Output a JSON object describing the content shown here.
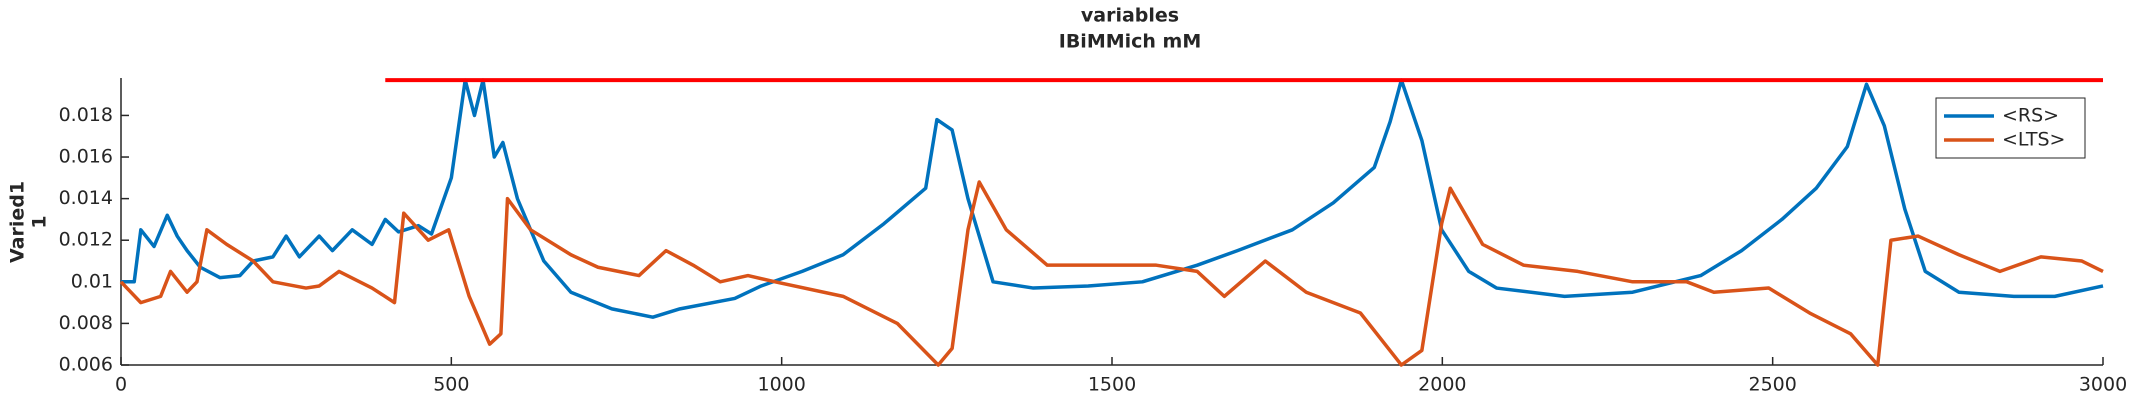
{
  "chart_data": {
    "type": "line",
    "title": "variables",
    "subtitle": "IBiMMich mM",
    "ylabel": [
      "Varied1",
      "1"
    ],
    "xlim": [
      0,
      3000
    ],
    "xticks": [
      0,
      500,
      1000,
      1500,
      2000,
      2500,
      3000
    ],
    "ylim": [
      0.006,
      0.0198
    ],
    "yticks": [
      0.006,
      0.008,
      0.01,
      0.012,
      0.014,
      0.016,
      0.018
    ],
    "legend": "upper right",
    "reference_line": {
      "x": [
        400,
        3000
      ],
      "y": 0.0197,
      "color": "#ff0000"
    },
    "series": [
      {
        "name": "<RS>",
        "color": "#0072bd",
        "x": [
          0,
          20,
          30,
          50,
          70,
          85,
          100,
          120,
          150,
          180,
          200,
          230,
          250,
          270,
          300,
          320,
          350,
          380,
          400,
          420,
          450,
          470,
          500,
          521,
          535,
          548,
          565,
          578,
          600,
          640,
          681,
          743,
          805,
          846,
          929,
          969,
          1031,
          1093,
          1155,
          1218,
          1235,
          1258,
          1282,
          1320,
          1381,
          1464,
          1546,
          1629,
          1690,
          1773,
          1835,
          1897,
          1921,
          1938,
          1969,
          1999,
          2040,
          2082,
          2185,
          2288,
          2391,
          2453,
          2514,
          2566,
          2613,
          2642,
          2669,
          2700,
          2731,
          2782,
          2865,
          2927,
          3000
        ],
        "values": [
          0.01,
          0.01,
          0.0125,
          0.0117,
          0.0132,
          0.0122,
          0.0115,
          0.0107,
          0.0102,
          0.0103,
          0.011,
          0.0112,
          0.0122,
          0.0112,
          0.0122,
          0.0115,
          0.0125,
          0.0118,
          0.013,
          0.0124,
          0.0127,
          0.0123,
          0.015,
          0.0197,
          0.018,
          0.0197,
          0.016,
          0.0167,
          0.014,
          0.011,
          0.0095,
          0.0087,
          0.0083,
          0.0087,
          0.0092,
          0.0098,
          0.0105,
          0.0113,
          0.0128,
          0.0145,
          0.0178,
          0.0173,
          0.014,
          0.01,
          0.0097,
          0.0098,
          0.01,
          0.0108,
          0.0115,
          0.0125,
          0.0138,
          0.0155,
          0.0177,
          0.0197,
          0.0168,
          0.0125,
          0.0105,
          0.0097,
          0.0093,
          0.0095,
          0.0103,
          0.0115,
          0.013,
          0.0145,
          0.0165,
          0.0195,
          0.0175,
          0.0135,
          0.0105,
          0.0095,
          0.0093,
          0.0093,
          0.0098
        ]
      },
      {
        "name": "<LTS>",
        "color": "#d95319",
        "x": [
          0,
          30,
          60,
          75,
          100,
          115,
          130,
          160,
          200,
          230,
          280,
          300,
          330,
          380,
          414,
          428,
          465,
          496,
          527,
          558,
          575,
          585,
          620,
          681,
          722,
          784,
          825,
          866,
          907,
          949,
          990,
          1093,
          1175,
          1237,
          1258,
          1282,
          1299,
          1340,
          1402,
          1484,
          1567,
          1629,
          1670,
          1732,
          1794,
          1876,
          1938,
          1969,
          1999,
          2012,
          2061,
          2123,
          2205,
          2288,
          2370,
          2411,
          2494,
          2556,
          2618,
          2659,
          2679,
          2720,
          2782,
          2844,
          2906,
          2968,
          3000
        ],
        "values": [
          0.01,
          0.009,
          0.0093,
          0.0105,
          0.0095,
          0.01,
          0.0125,
          0.0118,
          0.011,
          0.01,
          0.0097,
          0.0098,
          0.0105,
          0.0097,
          0.009,
          0.0133,
          0.012,
          0.0125,
          0.0093,
          0.007,
          0.0075,
          0.014,
          0.0125,
          0.0113,
          0.0107,
          0.0103,
          0.0115,
          0.0108,
          0.01,
          0.0103,
          0.01,
          0.0093,
          0.008,
          0.006,
          0.0068,
          0.0125,
          0.0148,
          0.0125,
          0.0108,
          0.0108,
          0.0108,
          0.0105,
          0.0093,
          0.011,
          0.0095,
          0.0085,
          0.006,
          0.0067,
          0.0128,
          0.0145,
          0.0118,
          0.0108,
          0.0105,
          0.01,
          0.01,
          0.0095,
          0.0097,
          0.0085,
          0.0075,
          0.006,
          0.012,
          0.0122,
          0.0113,
          0.0105,
          0.0112,
          0.011,
          0.0105
        ]
      }
    ]
  }
}
